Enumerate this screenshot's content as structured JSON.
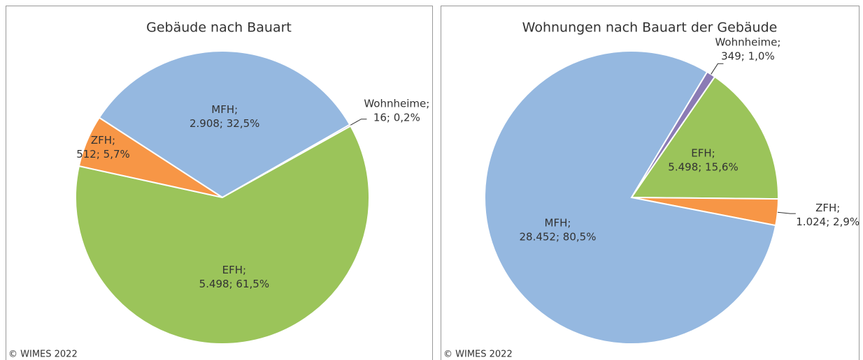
{
  "chart_data": [
    {
      "type": "pie",
      "title": "Gebäude nach Bauart",
      "source": "© WIMES 2022",
      "categories": [
        "MFH;",
        "Wohnheime;",
        "EFH;",
        "ZFH;"
      ],
      "values": [
        2908,
        16,
        5498,
        512
      ],
      "value_labels": [
        "2.908; 32,5%",
        "16; 0,2%",
        "5.498; 61,5%",
        "512; 5,7%"
      ],
      "colors": [
        "#95b8e0",
        "#8b7bb5",
        "#9bc45a",
        "#f79646"
      ]
    },
    {
      "type": "pie",
      "title": "Wohnungen nach Bauart der Gebäude",
      "source": "© WIMES 2022",
      "categories": [
        "Wohnheime;",
        "EFH;",
        "ZFH;",
        "MFH;"
      ],
      "values": [
        349,
        5498,
        1024,
        28452
      ],
      "value_labels": [
        "349; 1,0%",
        "5.498; 15,6%",
        "1.024; 2,9%",
        "28.452; 80,5%"
      ],
      "colors": [
        "#8b7bb5",
        "#9bc45a",
        "#f79646",
        "#95b8e0"
      ]
    }
  ]
}
